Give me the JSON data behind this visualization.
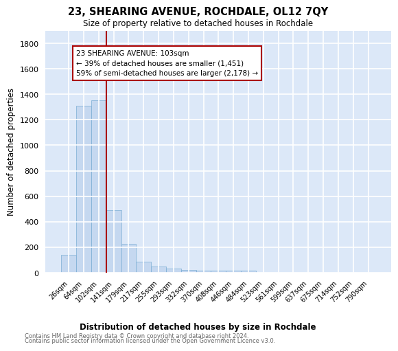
{
  "title": "23, SHEARING AVENUE, ROCHDALE, OL12 7QY",
  "subtitle": "Size of property relative to detached houses in Rochdale",
  "xlabel": "Distribution of detached houses by size in Rochdale",
  "ylabel": "Number of detached properties",
  "footer_line1": "Contains HM Land Registry data © Crown copyright and database right 2024.",
  "footer_line2": "Contains public sector information licensed under the Open Government Licence v3.0.",
  "bar_labels": [
    "26sqm",
    "64sqm",
    "102sqm",
    "141sqm",
    "179sqm",
    "217sqm",
    "255sqm",
    "293sqm",
    "332sqm",
    "370sqm",
    "408sqm",
    "446sqm",
    "484sqm",
    "523sqm",
    "561sqm",
    "599sqm",
    "637sqm",
    "675sqm",
    "714sqm",
    "752sqm",
    "790sqm"
  ],
  "bar_values": [
    140,
    1310,
    1355,
    490,
    228,
    85,
    50,
    30,
    20,
    15,
    15,
    15,
    18,
    0,
    0,
    0,
    0,
    0,
    0,
    0,
    0
  ],
  "bar_color": "#c5d8f0",
  "bar_edge_color": "#7aadd4",
  "background_color": "#dce8f8",
  "grid_color": "#ffffff",
  "vline_color": "#aa0000",
  "annotation_text": "23 SHEARING AVENUE: 103sqm\n← 39% of detached houses are smaller (1,451)\n59% of semi-detached houses are larger (2,178) →",
  "annotation_box_color": "#ffffff",
  "annotation_box_edge": "#aa0000",
  "ylim": [
    0,
    1900
  ],
  "yticks": [
    0,
    200,
    400,
    600,
    800,
    1000,
    1200,
    1400,
    1600,
    1800
  ]
}
